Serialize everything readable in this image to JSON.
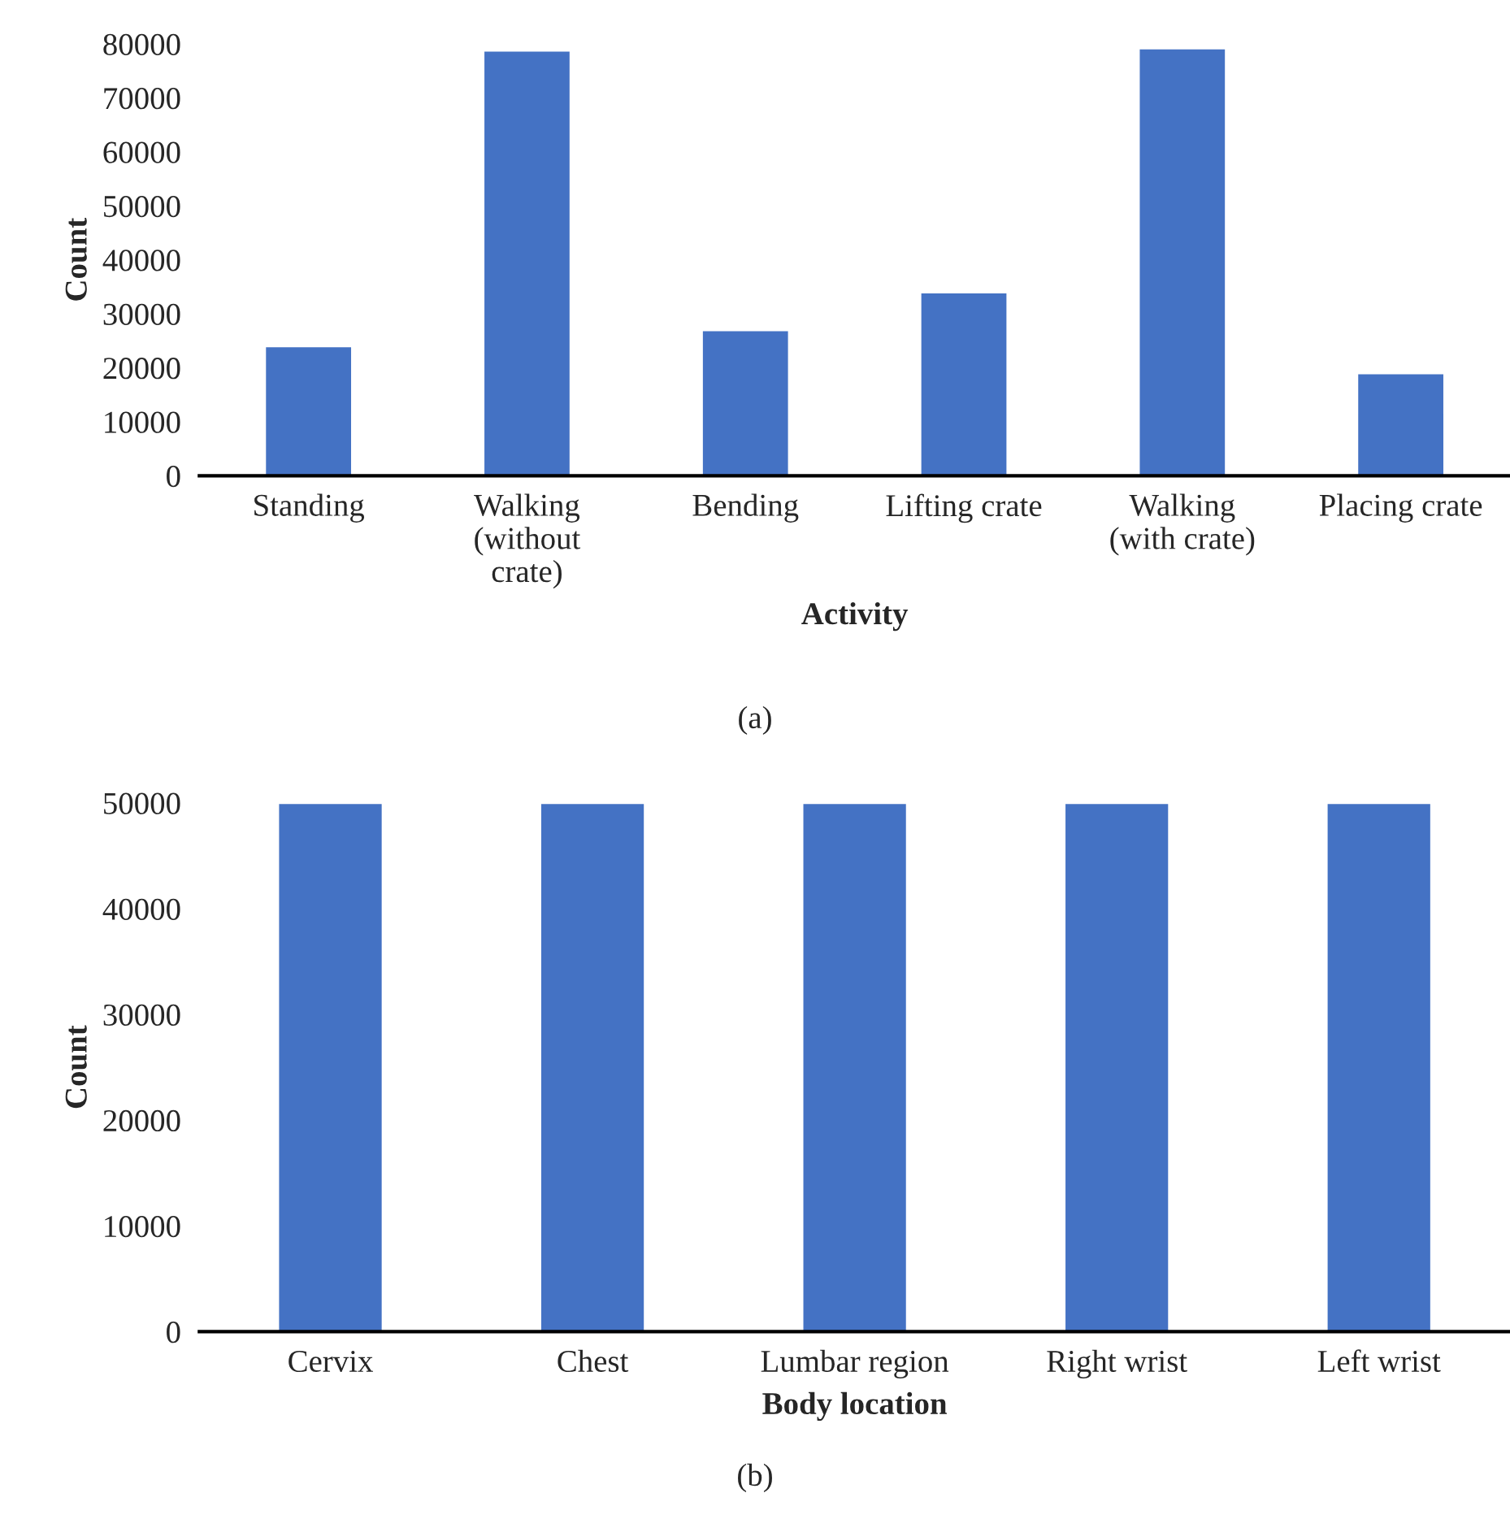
{
  "chart_data": [
    {
      "type": "bar",
      "xlabel": "Activity",
      "ylabel": "Count",
      "categories": [
        "Standing",
        "Walking\n(without\ncrate)",
        "Bending",
        "Lifting crate",
        "Walking\n(with crate)",
        "Placing crate"
      ],
      "values": [
        24000,
        78800,
        27000,
        34000,
        79200,
        19000
      ],
      "color": "#4472c4",
      "ylim": [
        0,
        80000
      ],
      "yticks": [
        0,
        10000,
        20000,
        30000,
        40000,
        50000,
        60000,
        70000,
        80000
      ],
      "grid": false,
      "annotations": [
        "(a)"
      ]
    },
    {
      "type": "bar",
      "xlabel": "Body location",
      "ylabel": "Count",
      "categories": [
        "Cervix",
        "Chest",
        "Lumbar region",
        "Right wrist",
        "Left wrist"
      ],
      "values": [
        50000,
        50000,
        50000,
        50000,
        50000
      ],
      "color": "#4472c4",
      "ylim": [
        0,
        50000
      ],
      "yticks": [
        0,
        10000,
        20000,
        30000,
        40000,
        50000
      ],
      "grid": false,
      "annotations": [
        "(b)"
      ]
    }
  ]
}
